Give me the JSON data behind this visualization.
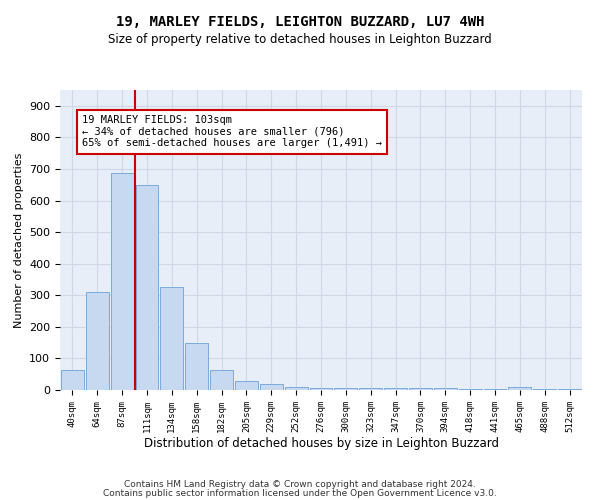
{
  "title": "19, MARLEY FIELDS, LEIGHTON BUZZARD, LU7 4WH",
  "subtitle": "Size of property relative to detached houses in Leighton Buzzard",
  "xlabel": "Distribution of detached houses by size in Leighton Buzzard",
  "ylabel": "Number of detached properties",
  "footer1": "Contains HM Land Registry data © Crown copyright and database right 2024.",
  "footer2": "Contains public sector information licensed under the Open Government Licence v3.0.",
  "bin_labels": [
    "40sqm",
    "64sqm",
    "87sqm",
    "111sqm",
    "134sqm",
    "158sqm",
    "182sqm",
    "205sqm",
    "229sqm",
    "252sqm",
    "276sqm",
    "300sqm",
    "323sqm",
    "347sqm",
    "370sqm",
    "394sqm",
    "418sqm",
    "441sqm",
    "465sqm",
    "488sqm",
    "512sqm"
  ],
  "bar_values": [
    62,
    310,
    688,
    648,
    325,
    150,
    62,
    28,
    18,
    10,
    5,
    5,
    5,
    5,
    5,
    5,
    2,
    2,
    8,
    2,
    2
  ],
  "bar_color": "#c6d9f0",
  "bar_edge_color": "#7aaadc",
  "grid_color": "#d0d8e8",
  "background_color": "#e8eef7",
  "vline_x": 2.5,
  "annotation_text1": "19 MARLEY FIELDS: 103sqm",
  "annotation_text2": "← 34% of detached houses are smaller (796)",
  "annotation_text3": "65% of semi-detached houses are larger (1,491) →",
  "annotation_box_color": "#ffffff",
  "annotation_border_color": "#cc0000",
  "vline_color": "#cc0000",
  "ylim": [
    0,
    950
  ],
  "yticks": [
    0,
    100,
    200,
    300,
    400,
    500,
    600,
    700,
    800,
    900
  ]
}
